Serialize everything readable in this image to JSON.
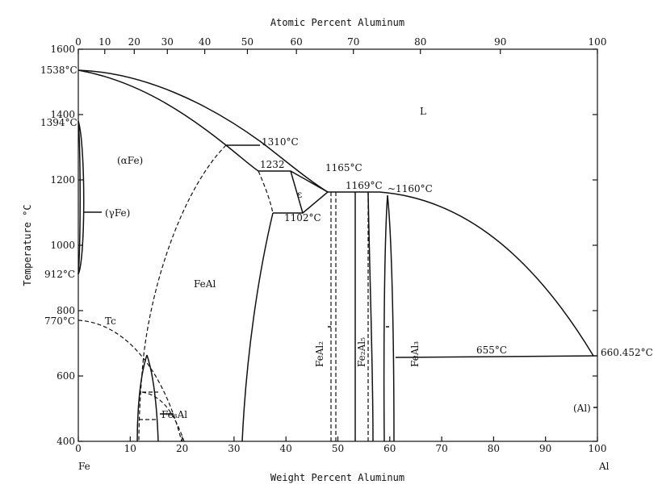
{
  "top_axis": {
    "title": "Atomic Percent Aluminum",
    "ticks": [
      {
        "value": 0,
        "label": "0"
      },
      {
        "value": 10,
        "label": "10"
      },
      {
        "value": 20,
        "label": "20"
      },
      {
        "value": 30,
        "label": "30"
      },
      {
        "value": 40,
        "label": "40"
      },
      {
        "value": 50,
        "label": "50"
      },
      {
        "value": 60,
        "label": "60"
      },
      {
        "value": 70,
        "label": "70"
      },
      {
        "value": 80,
        "label": "80"
      },
      {
        "value": 90,
        "label": "90"
      },
      {
        "value": 100,
        "label": "100"
      }
    ]
  },
  "x_axis": {
    "title": "Weight Percent Aluminum",
    "ticks": [
      0,
      10,
      20,
      30,
      40,
      50,
      60,
      70,
      80,
      90,
      100
    ],
    "left_element": "Fe",
    "right_element": "Al"
  },
  "y_axis": {
    "title": "Temperature °C",
    "ticks": [
      400,
      600,
      800,
      1000,
      1200,
      1400,
      1600
    ]
  },
  "phases": {
    "liquid": "L",
    "alpha": "(αFe)",
    "gamma": "(γFe)",
    "feal": "FeAl",
    "fe3al": "Fe₃Al",
    "feal2": "FeAl₂",
    "fe2al5": "Fe₂Al₅",
    "feal3": "FeAl₃",
    "epsilon": "ε",
    "al": "(Al)",
    "curie": "Tc"
  },
  "temperatures": {
    "t1538": "1538°C",
    "t1394": "1394°C",
    "t912": "912°C",
    "t770": "770°C",
    "t1310": "1310°C",
    "t1232": "1232",
    "t1165": "1165°C",
    "t1169": "1169°C",
    "t1160": "~1160°C",
    "t1102": "1102°C",
    "t655": "655°C",
    "t660": "660.452°C"
  }
}
